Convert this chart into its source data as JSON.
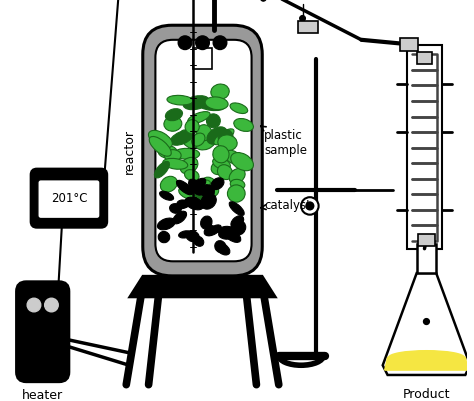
{
  "bg_color": "#ffffff",
  "black": "#000000",
  "gray": "#999999",
  "light_gray": "#cccccc",
  "dark_gray": "#444444",
  "green_dark": "#1a6b1a",
  "green_light": "#3cb83c",
  "yellow": "#f5e642",
  "label_reactor": "reactor",
  "label_heater": "heater",
  "label_temp": "201°C",
  "label_plastic": "plastic\nsample",
  "label_catalyst": "catalyst",
  "label_product": "Product"
}
